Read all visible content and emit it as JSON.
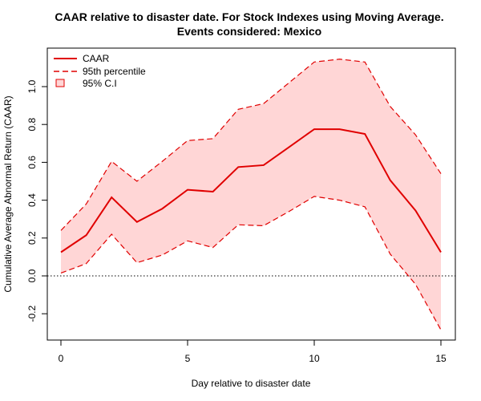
{
  "chart_data": {
    "type": "line",
    "title_line1": "CAAR relative to disaster date. For Stock Indexes using Moving Average.",
    "title_line2": "Events considered: Mexico",
    "xlabel": "Day relative to disaster date",
    "ylabel": "Cumulative Average Abnormal Return (CAAR)",
    "xlim": [
      0,
      15
    ],
    "ylim": [
      -0.3,
      1.15
    ],
    "x_ticks": [
      0,
      5,
      10,
      15
    ],
    "y_ticks": [
      -0.2,
      0.0,
      0.2,
      0.4,
      0.6,
      0.8,
      1.0
    ],
    "y_tick_labels": [
      "-0.2",
      "0.0",
      "0.2",
      "0.4",
      "0.6",
      "0.8",
      "1.0"
    ],
    "x_tick_labels": [
      "0",
      "5",
      "10",
      "15"
    ],
    "reference_line_y": 0,
    "grid": false,
    "legend_position": "top-left",
    "x": [
      0,
      1,
      2,
      3,
      4,
      5,
      6,
      7,
      8,
      9,
      10,
      11,
      12,
      13,
      14,
      15
    ],
    "series": [
      {
        "name": "CAAR",
        "style": "solid",
        "color": "#e00000",
        "values": [
          0.125,
          0.215,
          0.415,
          0.285,
          0.355,
          0.455,
          0.445,
          0.575,
          0.585,
          0.68,
          0.775,
          0.775,
          0.75,
          0.505,
          0.345,
          0.125
        ]
      },
      {
        "name": "95th percentile",
        "style": "dashed",
        "color": "#e00000",
        "upper": [
          0.24,
          0.38,
          0.605,
          0.5,
          0.605,
          0.715,
          0.725,
          0.88,
          0.91,
          1.02,
          1.13,
          1.145,
          1.13,
          0.895,
          0.745,
          0.54
        ],
        "lower": [
          0.015,
          0.065,
          0.22,
          0.07,
          0.11,
          0.185,
          0.15,
          0.27,
          0.265,
          0.34,
          0.42,
          0.4,
          0.365,
          0.115,
          -0.045,
          -0.285
        ]
      },
      {
        "name": "95% C.I",
        "style": "band",
        "color": "#ffd6d6"
      }
    ]
  }
}
